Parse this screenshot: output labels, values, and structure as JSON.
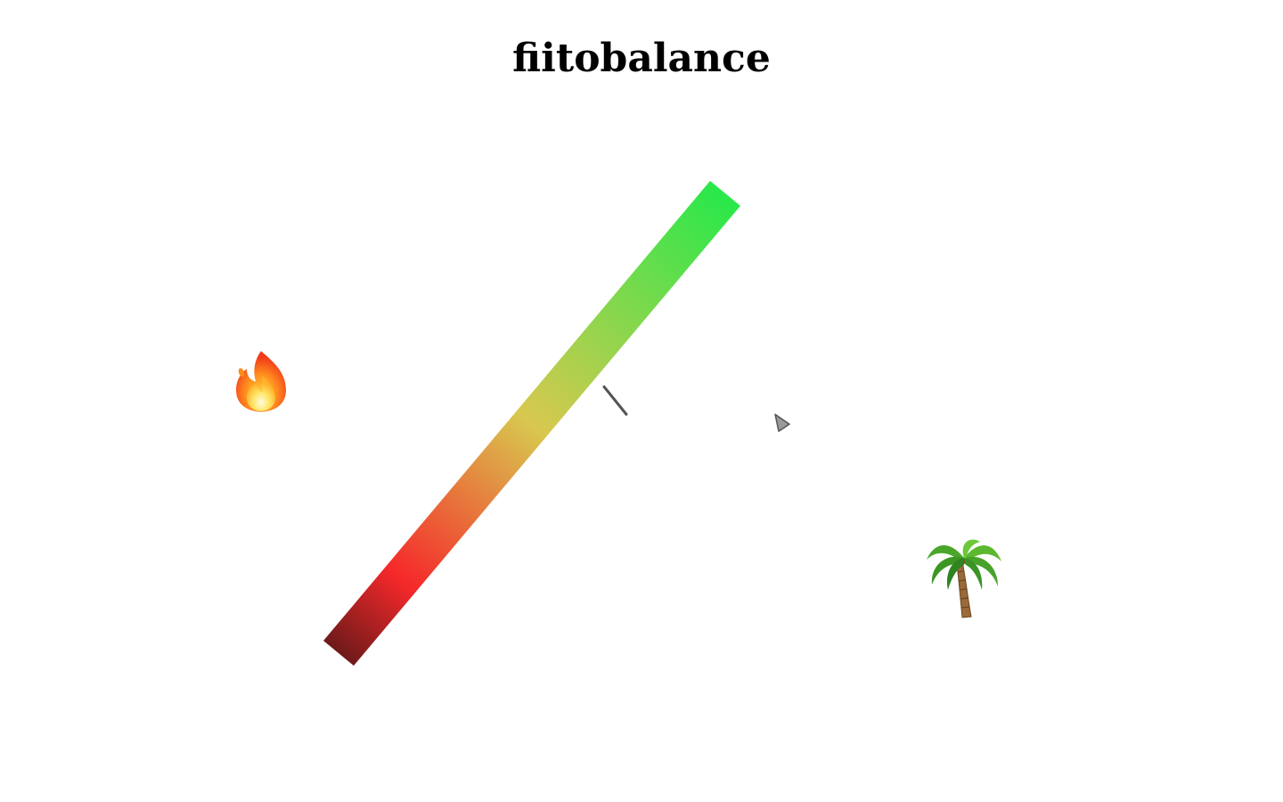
{
  "game": {
    "title": "fiitobalance"
  },
  "scene": {
    "left_item_icon": "fire-icon",
    "right_item_icon": "palm-tree-icon",
    "pointer_icon": "triangle-pointer-icon",
    "balance_bar_colors": {
      "low_end": "#6e1a1a",
      "low": "#f5282a",
      "mid": "#d8c84f",
      "high": "#28e84a"
    },
    "marker_color": "#555555",
    "pointer_fill": "#9a9a9a",
    "pointer_stroke": "#555555"
  }
}
